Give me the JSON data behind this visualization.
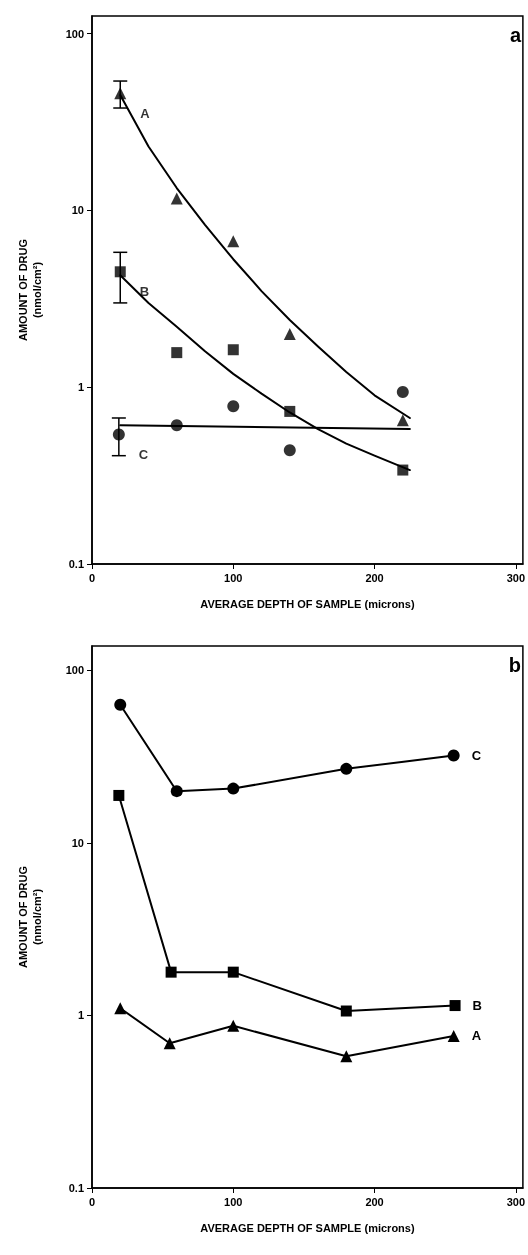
{
  "chart_data": [
    {
      "type": "scatter",
      "title": "a",
      "xlabel": "AVERAGE DEPTH OF SAMPLE (microns)",
      "ylabel": "AMOUNT OF DRUG\n(nmol/cm²)",
      "log": "y",
      "grid": false,
      "legend": false,
      "xlim": [
        0,
        305
      ],
      "xticks": [
        0,
        100,
        200,
        300
      ],
      "ylim": [
        0.1,
        126
      ],
      "yticks": [
        0.1,
        1,
        10,
        100
      ],
      "series": [
        {
          "name": "A",
          "color": "#000000",
          "marker": "triangle",
          "x": [
            20,
            60,
            100,
            140,
            220
          ],
          "values": [
            46,
            11.7,
            6.7,
            2.0,
            0.65
          ],
          "errors": [
            [
              38,
              54
            ],
            null,
            null,
            null,
            null
          ]
        },
        {
          "name": "B",
          "color": "#000000",
          "marker": "square",
          "x": [
            20,
            60,
            100,
            140,
            220
          ],
          "values": [
            4.5,
            1.57,
            1.63,
            0.73,
            0.34
          ],
          "errors": [
            [
              3.0,
              5.8
            ],
            null,
            null,
            null,
            null
          ]
        },
        {
          "name": "C",
          "color": "#000000",
          "marker": "circle",
          "x": [
            19,
            60,
            100,
            140,
            220
          ],
          "values": [
            0.54,
            0.61,
            0.78,
            0.44,
            0.94
          ],
          "errors": [
            [
              0.41,
              0.67
            ],
            null,
            null,
            null,
            null
          ]
        },
        {
          "type": "line",
          "color": "#000000",
          "marker": "none",
          "line_style": "solid",
          "x": [
            20,
            40,
            60,
            80,
            100,
            120,
            140,
            160,
            180,
            200,
            225
          ],
          "values": [
            45,
            23,
            13.4,
            8.3,
            5.3,
            3.5,
            2.4,
            1.7,
            1.22,
            0.9,
            0.67
          ]
        },
        {
          "type": "line",
          "color": "#000000",
          "marker": "none",
          "line_style": "solid",
          "x": [
            20,
            40,
            60,
            80,
            100,
            120,
            140,
            160,
            180,
            200,
            225
          ],
          "values": [
            4.3,
            3.0,
            2.2,
            1.6,
            1.19,
            0.92,
            0.72,
            0.58,
            0.48,
            0.41,
            0.34
          ]
        },
        {
          "type": "line",
          "color": "#000000",
          "marker": "none",
          "line_style": "solid",
          "x": [
            20,
            225
          ],
          "values": [
            0.61,
            0.58
          ]
        }
      ]
    },
    {
      "type": "line",
      "title": "b",
      "xlabel": "AVERAGE DEPTH OF SAMPLE (microns)",
      "ylabel": "AMOUNT OF DRUG\n(nmol/cm²)",
      "log": "y",
      "grid": false,
      "legend": false,
      "line_style": "solid",
      "xlim": [
        0,
        305
      ],
      "xticks": [
        0,
        100,
        200,
        300
      ],
      "ylim": [
        0.1,
        138
      ],
      "yticks": [
        0.1,
        1,
        10,
        100
      ],
      "series": [
        {
          "name": "C",
          "color": "#000000",
          "marker": "circle",
          "x": [
            20,
            60,
            100,
            180,
            256
          ],
          "values": [
            63,
            19.9,
            20.6,
            26.8,
            32
          ]
        },
        {
          "name": "B",
          "color": "#000000",
          "marker": "square",
          "x": [
            19,
            56,
            100,
            180,
            257
          ],
          "values": [
            18.8,
            1.78,
            1.78,
            1.06,
            1.14
          ]
        },
        {
          "name": "A",
          "color": "#000000",
          "marker": "triangle",
          "x": [
            20,
            55,
            100,
            180,
            256
          ],
          "values": [
            1.1,
            0.69,
            0.87,
            0.58,
            0.76
          ]
        }
      ]
    }
  ]
}
